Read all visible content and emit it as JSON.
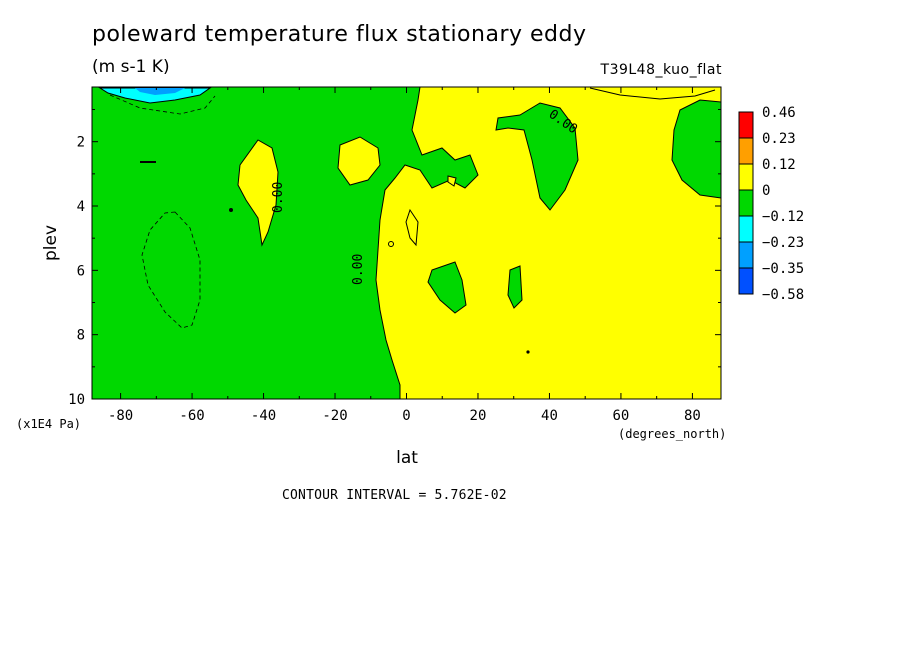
{
  "title": "poleward temperature flux stationary eddy",
  "units": "(m s-1 K)",
  "experiment": "T39L48_kuo_flat",
  "contour_interval": "CONTOUR INTERVAL = 5.762E-02",
  "chart_data": {
    "type": "heatmap",
    "subtype": "filled-contour",
    "xlabel": "lat",
    "xunits": "(degrees_north)",
    "ylabel": "plev",
    "yunits": "(x1E4 Pa)",
    "xlim": [
      -88,
      88
    ],
    "ylim": [
      10,
      0.3
    ],
    "xticks": [
      -80,
      -60,
      -40,
      -20,
      0,
      20,
      40,
      60,
      80
    ],
    "yticks": [
      2,
      4,
      6,
      8,
      10
    ],
    "contour_labels": [
      "0.00",
      "0.00",
      "0.00"
    ],
    "colorbar": {
      "levels": [
        "0.46",
        "0.23",
        "0.12",
        "0",
        "−0.12",
        "−0.23",
        "−0.35",
        "−0.58"
      ],
      "colors": [
        "#ff0000",
        "#ff9f00",
        "#ffff00",
        "#00d800",
        "#00ffff",
        "#00a0ff",
        "#0050ff"
      ]
    },
    "regions": {
      "background_south": "#00d800",
      "background_north": "#ffff00",
      "note": "green (−0.12 to 0) dominates south of ~0°N; yellow (0 to 0.12) dominates north; negative cyan/blue core near top at ~-75°N"
    }
  }
}
